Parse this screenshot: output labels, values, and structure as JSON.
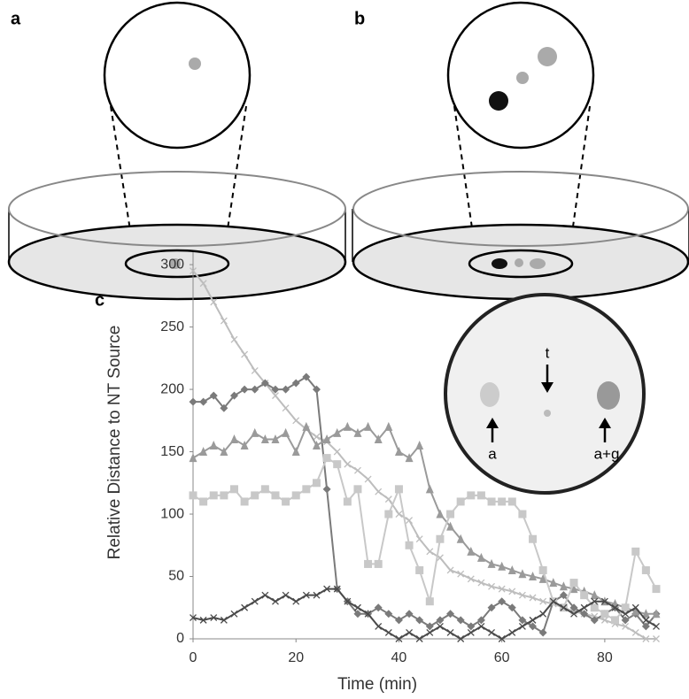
{
  "panels": [
    "a",
    "b",
    "c"
  ],
  "inset_labels": [
    "t",
    "a",
    "a+g"
  ],
  "chart_data": {
    "type": "line",
    "xlabel": "Time (min)",
    "ylabel": "Relative Distance to NT Source",
    "x": [
      0,
      2,
      4,
      6,
      8,
      10,
      12,
      14,
      16,
      18,
      20,
      22,
      24,
      26,
      28,
      30,
      32,
      34,
      36,
      38,
      40,
      42,
      44,
      46,
      48,
      50,
      52,
      54,
      56,
      58,
      60,
      62,
      64,
      66,
      68,
      70,
      72,
      74,
      76,
      78,
      80,
      82,
      84,
      86,
      88,
      90
    ],
    "xlim": [
      0,
      90
    ],
    "xticks": [
      0,
      20,
      40,
      60,
      80
    ],
    "ylim": [
      0,
      310
    ],
    "yticks": [
      0,
      50,
      100,
      150,
      200,
      250,
      300
    ],
    "series": [
      {
        "color": "#bdbdbd",
        "marker": "x",
        "values": [
          295,
          285,
          270,
          255,
          240,
          228,
          215,
          205,
          195,
          185,
          175,
          168,
          162,
          158,
          150,
          140,
          135,
          128,
          118,
          112,
          100,
          95,
          80,
          70,
          65,
          55,
          52,
          48,
          45,
          42,
          40,
          38,
          35,
          33,
          30,
          28,
          25,
          22,
          20,
          18,
          15,
          12,
          10,
          5,
          0,
          0
        ]
      },
      {
        "color": "#7a7a7a",
        "marker": "diamond",
        "values": [
          190,
          190,
          195,
          185,
          195,
          200,
          200,
          205,
          200,
          200,
          205,
          210,
          200,
          120,
          40,
          30,
          20,
          20,
          25,
          20,
          15,
          20,
          15,
          10,
          15,
          20,
          15,
          10,
          15,
          25,
          30,
          25,
          15,
          10,
          5,
          30,
          35,
          25,
          20,
          15,
          20,
          25,
          15,
          20,
          10,
          20
        ]
      },
      {
        "color": "#9a9a9a",
        "marker": "triangle",
        "values": [
          145,
          150,
          155,
          150,
          160,
          155,
          165,
          160,
          160,
          165,
          150,
          170,
          155,
          160,
          165,
          170,
          165,
          170,
          160,
          170,
          150,
          145,
          155,
          120,
          100,
          90,
          80,
          70,
          65,
          60,
          58,
          55,
          52,
          50,
          48,
          45,
          42,
          40,
          38,
          35,
          30,
          28,
          25,
          22,
          20,
          20
        ]
      },
      {
        "color": "#c8c8c8",
        "marker": "square",
        "values": [
          115,
          110,
          115,
          115,
          120,
          110,
          115,
          120,
          115,
          110,
          115,
          120,
          125,
          145,
          140,
          110,
          120,
          60,
          60,
          100,
          120,
          75,
          55,
          30,
          80,
          100,
          110,
          115,
          115,
          110,
          110,
          110,
          100,
          80,
          55,
          30,
          25,
          45,
          35,
          25,
          20,
          15,
          25,
          70,
          55,
          40
        ]
      },
      {
        "color": "#4a4a4a",
        "marker": "x",
        "values": [
          17,
          15,
          17,
          15,
          20,
          25,
          30,
          35,
          30,
          35,
          30,
          35,
          35,
          40,
          40,
          30,
          25,
          20,
          10,
          5,
          0,
          5,
          0,
          5,
          10,
          5,
          0,
          5,
          10,
          5,
          0,
          5,
          10,
          15,
          20,
          30,
          25,
          20,
          25,
          30,
          30,
          25,
          20,
          25,
          15,
          10
        ]
      }
    ]
  }
}
